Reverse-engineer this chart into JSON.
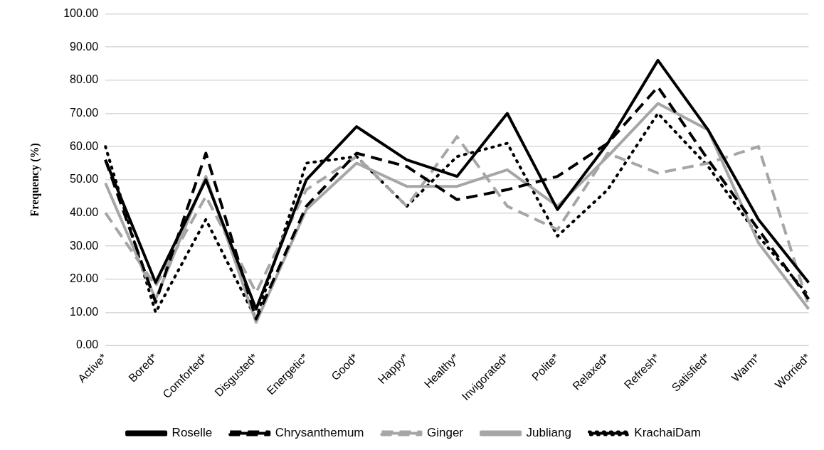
{
  "chart_data": {
    "type": "line",
    "ylabel": "Frequency (%)",
    "categories": [
      "Active*",
      "Bored*",
      "Comforted*",
      "Disgusted*",
      "Energetic*",
      "Good*",
      "Happy*",
      "Healthy*",
      "Invigorated*",
      "Polite*",
      "Relaxed*",
      "Refresh*",
      "Satisfied*",
      "Warm*",
      "Worried*"
    ],
    "series": [
      {
        "name": "Roselle",
        "color": "#000000",
        "line_style": "solid",
        "values": [
          56,
          19,
          50,
          11,
          50,
          66,
          56,
          51,
          70,
          41,
          61,
          86,
          65,
          38,
          19
        ]
      },
      {
        "name": "Chrysanthemum",
        "color": "#000000",
        "line_style": "dashed",
        "values": [
          56,
          13,
          58,
          8,
          42,
          58,
          54,
          44,
          47,
          51,
          61,
          78,
          56,
          35,
          14
        ]
      },
      {
        "name": "Ginger",
        "color": "#a6a6a6",
        "line_style": "dashed",
        "values": [
          40,
          18,
          45,
          16,
          47,
          57,
          42,
          63,
          42,
          35,
          58,
          52,
          55,
          60,
          12
        ]
      },
      {
        "name": "Jubliang",
        "color": "#a6a6a6",
        "line_style": "solid",
        "values": [
          49,
          14,
          51,
          7,
          41,
          55,
          48,
          48,
          53,
          42,
          57,
          73,
          65,
          31,
          11
        ]
      },
      {
        "name": "KrachaiDam",
        "color": "#000000",
        "line_style": "dotted",
        "values": [
          60,
          10,
          38,
          8,
          55,
          57,
          42,
          57,
          61,
          33,
          47,
          70,
          54,
          33,
          15
        ]
      }
    ],
    "ylim": [
      0,
      100
    ],
    "yticks": [
      {
        "value": 0,
        "label": "0.00"
      },
      {
        "value": 10,
        "label": "10.00"
      },
      {
        "value": 20,
        "label": "20.00"
      },
      {
        "value": 30,
        "label": "30.00"
      },
      {
        "value": 40,
        "label": "40.00"
      },
      {
        "value": 50,
        "label": "50.00"
      },
      {
        "value": 60,
        "label": "60.00"
      },
      {
        "value": 70,
        "label": "70.00"
      },
      {
        "value": 80,
        "label": "80.00"
      },
      {
        "value": 90,
        "label": "90.00"
      },
      {
        "value": 100,
        "label": "100.00"
      }
    ],
    "grid": "y",
    "legend": "bottom",
    "marker": "none"
  }
}
